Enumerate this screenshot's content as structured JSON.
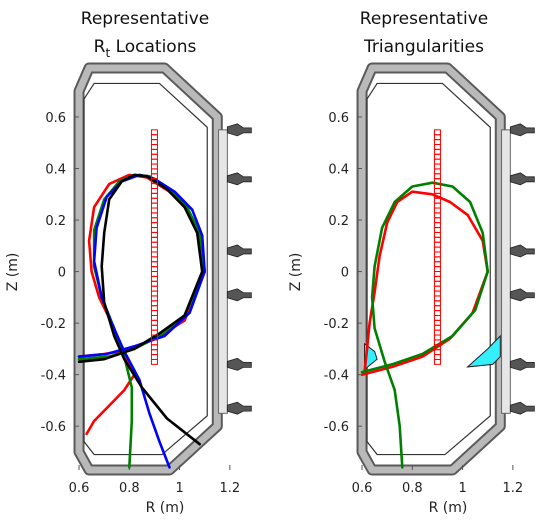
{
  "colors": {
    "wall_fill": "#b9b9b9",
    "wall_stroke": "#5a5a5a",
    "coil_fill": "#555555",
    "probe": "#ff0000",
    "plate": "#33f0ff",
    "red": "#ff0000",
    "green": "#008000",
    "blue": "#0000ff",
    "black": "#000000"
  },
  "chart_data": [
    {
      "type": "line",
      "title_line1": "Representative",
      "title_line2_main": "R",
      "title_line2_sub": "t",
      "title_line2_rest": " Locations",
      "xlabel": "R (m)",
      "ylabel": "Z (m)",
      "xlim": [
        0.58,
        1.3
      ],
      "ylim": [
        -0.77,
        0.79
      ],
      "xticks": [
        "0.6",
        "0.8",
        "1",
        "1.2"
      ],
      "yticks": [
        "0.6",
        "0.4",
        "0.2",
        "0",
        "-0.2",
        "-0.4",
        "-0.6"
      ],
      "probe_column": {
        "r": 0.9,
        "z_min": -0.36,
        "z_max": 0.55,
        "count": 48
      },
      "series": [
        {
          "color": "red",
          "points": [
            [
              1.1,
              0
            ],
            [
              1.08,
              0.14
            ],
            [
              1.03,
              0.24
            ],
            [
              0.96,
              0.31
            ],
            [
              0.87,
              0.365
            ],
            [
              0.8,
              0.375
            ],
            [
              0.72,
              0.34
            ],
            [
              0.66,
              0.25
            ],
            [
              0.64,
              0.12
            ],
            [
              0.65,
              0.0
            ],
            [
              0.68,
              -0.1
            ],
            [
              0.73,
              -0.2
            ],
            [
              0.77,
              -0.31
            ],
            [
              0.82,
              -0.4
            ],
            [
              0.78,
              -0.46
            ],
            [
              0.72,
              -0.52
            ],
            [
              0.66,
              -0.58
            ],
            [
              0.63,
              -0.63
            ]
          ]
        },
        {
          "color": "red",
          "points": [
            [
              0.6,
              -0.33
            ],
            [
              0.7,
              -0.32
            ],
            [
              0.82,
              -0.3
            ],
            [
              0.92,
              -0.25
            ],
            [
              1.02,
              -0.19
            ],
            [
              1.1,
              0
            ]
          ]
        },
        {
          "color": "green",
          "points": [
            [
              1.1,
              0
            ],
            [
              1.08,
              0.15
            ],
            [
              1.03,
              0.25
            ],
            [
              0.96,
              0.32
            ],
            [
              0.88,
              0.37
            ],
            [
              0.82,
              0.375
            ],
            [
              0.76,
              0.35
            ],
            [
              0.7,
              0.28
            ],
            [
              0.66,
              0.16
            ],
            [
              0.66,
              0.02
            ],
            [
              0.69,
              -0.1
            ],
            [
              0.74,
              -0.22
            ],
            [
              0.78,
              -0.33
            ],
            [
              0.81,
              -0.45
            ],
            [
              0.81,
              -0.58
            ],
            [
              0.8,
              -0.76
            ]
          ]
        },
        {
          "color": "green",
          "points": [
            [
              0.6,
              -0.34
            ],
            [
              0.72,
              -0.33
            ],
            [
              0.82,
              -0.3
            ],
            [
              0.92,
              -0.25
            ],
            [
              1.02,
              -0.17
            ],
            [
              1.1,
              0
            ]
          ]
        },
        {
          "color": "blue",
          "points": [
            [
              1.1,
              0
            ],
            [
              1.09,
              0.14
            ],
            [
              1.05,
              0.24
            ],
            [
              0.98,
              0.31
            ],
            [
              0.9,
              0.36
            ],
            [
              0.84,
              0.375
            ],
            [
              0.77,
              0.35
            ],
            [
              0.71,
              0.29
            ],
            [
              0.67,
              0.17
            ],
            [
              0.66,
              0.04
            ],
            [
              0.69,
              -0.1
            ],
            [
              0.73,
              -0.2
            ],
            [
              0.78,
              -0.31
            ],
            [
              0.84,
              -0.42
            ],
            [
              0.88,
              -0.55
            ],
            [
              0.92,
              -0.66
            ],
            [
              0.96,
              -0.76
            ]
          ]
        },
        {
          "color": "blue",
          "points": [
            [
              0.6,
              -0.33
            ],
            [
              0.71,
              -0.32
            ],
            [
              0.82,
              -0.29
            ],
            [
              0.94,
              -0.25
            ],
            [
              1.04,
              -0.16
            ],
            [
              1.1,
              0
            ]
          ]
        },
        {
          "color": "black",
          "points": [
            [
              1.09,
              0
            ],
            [
              1.07,
              0.15
            ],
            [
              1.02,
              0.25
            ],
            [
              0.95,
              0.32
            ],
            [
              0.87,
              0.37
            ],
            [
              0.82,
              0.375
            ],
            [
              0.77,
              0.35
            ],
            [
              0.72,
              0.28
            ],
            [
              0.7,
              0.15
            ],
            [
              0.69,
              0.02
            ],
            [
              0.7,
              -0.12
            ],
            [
              0.74,
              -0.25
            ],
            [
              0.78,
              -0.34
            ],
            [
              0.85,
              -0.45
            ],
            [
              0.95,
              -0.57
            ],
            [
              1.08,
              -0.67
            ]
          ]
        },
        {
          "color": "black",
          "points": [
            [
              0.6,
              -0.35
            ],
            [
              0.7,
              -0.34
            ],
            [
              0.82,
              -0.3
            ],
            [
              0.92,
              -0.24
            ],
            [
              1.02,
              -0.17
            ],
            [
              1.09,
              0
            ]
          ]
        }
      ]
    },
    {
      "type": "line",
      "title_line1": "Representative",
      "title_line2_main": "Triangularities",
      "title_line2_sub": "",
      "title_line2_rest": "",
      "xlabel": "R (m)",
      "ylabel": "Z (m)",
      "xlim": [
        0.58,
        1.3
      ],
      "ylim": [
        -0.77,
        0.79
      ],
      "xticks": [
        "0.6",
        "0.8",
        "1",
        "1.2"
      ],
      "yticks": [
        "0.6",
        "0.4",
        "0.2",
        "0",
        "-0.2",
        "-0.4",
        "-0.6"
      ],
      "probe_column": {
        "r": 0.9,
        "z_min": -0.36,
        "z_max": 0.55,
        "count": 48
      },
      "series": [
        {
          "color": "red",
          "points": [
            [
              1.1,
              0
            ],
            [
              1.08,
              0.12
            ],
            [
              1.02,
              0.22
            ],
            [
              0.95,
              0.27
            ],
            [
              0.88,
              0.3
            ],
            [
              0.8,
              0.31
            ],
            [
              0.74,
              0.27
            ],
            [
              0.7,
              0.19
            ],
            [
              0.67,
              0.06
            ],
            [
              0.65,
              -0.08
            ],
            [
              0.63,
              -0.2
            ],
            [
              0.62,
              -0.3
            ],
            [
              0.61,
              -0.39
            ]
          ]
        },
        {
          "color": "red",
          "points": [
            [
              0.6,
              -0.4
            ],
            [
              0.72,
              -0.37
            ],
            [
              0.84,
              -0.33
            ],
            [
              0.95,
              -0.26
            ],
            [
              1.04,
              -0.16
            ],
            [
              1.1,
              0
            ]
          ]
        },
        {
          "color": "green",
          "points": [
            [
              1.1,
              0
            ],
            [
              1.08,
              0.15
            ],
            [
              1.03,
              0.27
            ],
            [
              0.96,
              0.33
            ],
            [
              0.88,
              0.345
            ],
            [
              0.8,
              0.33
            ],
            [
              0.73,
              0.27
            ],
            [
              0.68,
              0.17
            ],
            [
              0.65,
              0.02
            ],
            [
              0.64,
              -0.1
            ],
            [
              0.65,
              -0.22
            ],
            [
              0.69,
              -0.35
            ],
            [
              0.73,
              -0.46
            ],
            [
              0.75,
              -0.6
            ],
            [
              0.76,
              -0.76
            ]
          ]
        },
        {
          "color": "green",
          "points": [
            [
              0.6,
              -0.39
            ],
            [
              0.72,
              -0.36
            ],
            [
              0.84,
              -0.32
            ],
            [
              0.96,
              -0.25
            ],
            [
              1.05,
              -0.15
            ],
            [
              1.1,
              0
            ]
          ]
        }
      ],
      "plates": [
        {
          "color": "plate",
          "points": [
            [
              0.61,
              -0.28
            ],
            [
              0.65,
              -0.31
            ],
            [
              0.66,
              -0.34
            ],
            [
              0.61,
              -0.38
            ]
          ]
        },
        {
          "color": "plate",
          "points": [
            [
              1.02,
              -0.37
            ],
            [
              1.1,
              -0.3
            ],
            [
              1.15,
              -0.25
            ],
            [
              1.15,
              -0.33
            ],
            [
              1.12,
              -0.36
            ]
          ]
        }
      ]
    }
  ]
}
